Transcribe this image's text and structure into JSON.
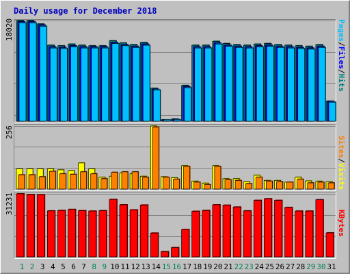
{
  "chart_data": {
    "title": "Daily usage for December 2018",
    "type": "bar",
    "categories": [
      "1",
      "2",
      "3",
      "4",
      "5",
      "6",
      "7",
      "8",
      "9",
      "10",
      "11",
      "12",
      "13",
      "14",
      "15",
      "16",
      "17",
      "18",
      "19",
      "20",
      "21",
      "22",
      "23",
      "24",
      "25",
      "26",
      "27",
      "28",
      "29",
      "30",
      "31"
    ],
    "weekend_days": [
      "1",
      "2",
      "8",
      "9",
      "15",
      "16",
      "22",
      "23",
      "29",
      "30"
    ],
    "panels": [
      {
        "max_label": "18020",
        "ymax": 18020,
        "right_label": [
          "Pages",
          "/",
          "Files",
          "/",
          "Hits"
        ],
        "right_label_colors": [
          "#00C0FF",
          "#000000",
          "#0000FF",
          "#000000",
          "#008080"
        ],
        "series": [
          {
            "name": "Hits",
            "color": "#008080",
            "values": [
              18020,
              18020,
              17400,
              13600,
              13500,
              13800,
              13600,
              13500,
              13500,
              14400,
              14000,
              13700,
              14100,
              5900,
              250,
              400,
              6400,
              13600,
              13600,
              14300,
              13900,
              13700,
              13600,
              13800,
              13900,
              13700,
              13600,
              13500,
              13400,
              13700,
              3600
            ]
          },
          {
            "name": "Files",
            "color": "#0000FF",
            "values": [
              17800,
              17800,
              17200,
              13300,
              13200,
              13500,
              13300,
              13300,
              13300,
              14100,
              13700,
              13400,
              13800,
              5700,
              180,
              300,
              6200,
              13300,
              13300,
              14000,
              13600,
              13400,
              13300,
              13500,
              13600,
              13400,
              13300,
              13200,
              13100,
              13400,
              3500
            ]
          },
          {
            "name": "Pages",
            "color": "#00C0FF",
            "values": [
              17600,
              17600,
              17000,
              13100,
              13000,
              13300,
              13100,
              13100,
              13100,
              13900,
              13500,
              13200,
              13600,
              5600,
              150,
              250,
              6000,
              13100,
              13100,
              13800,
              13400,
              13200,
              13100,
              13300,
              13400,
              13200,
              13100,
              13000,
              12900,
              13200,
              3400
            ]
          }
        ]
      },
      {
        "max_label": "256",
        "ymax": 256,
        "right_label": [
          "Sites",
          "/",
          "Visits"
        ],
        "right_label_colors": [
          "#FF8000",
          "#000000",
          "#FFFF00"
        ],
        "series": [
          {
            "name": "Visits",
            "color": "#FFFF00",
            "values": [
              82,
              82,
              82,
              82,
              78,
              75,
              106,
              82,
              48,
              52,
              65,
              62,
              52,
              256,
              50,
              46,
              95,
              32,
              24,
              95,
              42,
              42,
              30,
              56,
              35,
              35,
              28,
              48,
              33,
              32,
              30
            ]
          },
          {
            "name": "Sites",
            "color": "#FF8000",
            "values": [
              58,
              58,
              50,
              72,
              62,
              60,
              70,
              62,
              42,
              68,
              70,
              70,
              48,
              252,
              48,
              40,
              92,
              28,
              18,
              92,
              38,
              35,
              22,
              48,
              32,
              30,
              28,
              40,
              25,
              28,
              25
            ]
          }
        ]
      },
      {
        "max_label": "31231",
        "ymax": 31231,
        "right_label": [
          "KBytes"
        ],
        "right_label_colors": [
          "#FF0000"
        ],
        "series": [
          {
            "name": "KBytes",
            "color": "#FF0000",
            "values": [
              31231,
              30900,
              30800,
              22800,
              23000,
              23500,
              22900,
              22700,
              22900,
              28500,
              25800,
              23300,
              25700,
              11800,
              2600,
              4600,
              13600,
              22600,
              23000,
              25800,
              25600,
              24700,
              22800,
              28000,
              28800,
              28000,
              24500,
              22700,
              22700,
              28300,
              11900
            ]
          }
        ]
      }
    ]
  }
}
